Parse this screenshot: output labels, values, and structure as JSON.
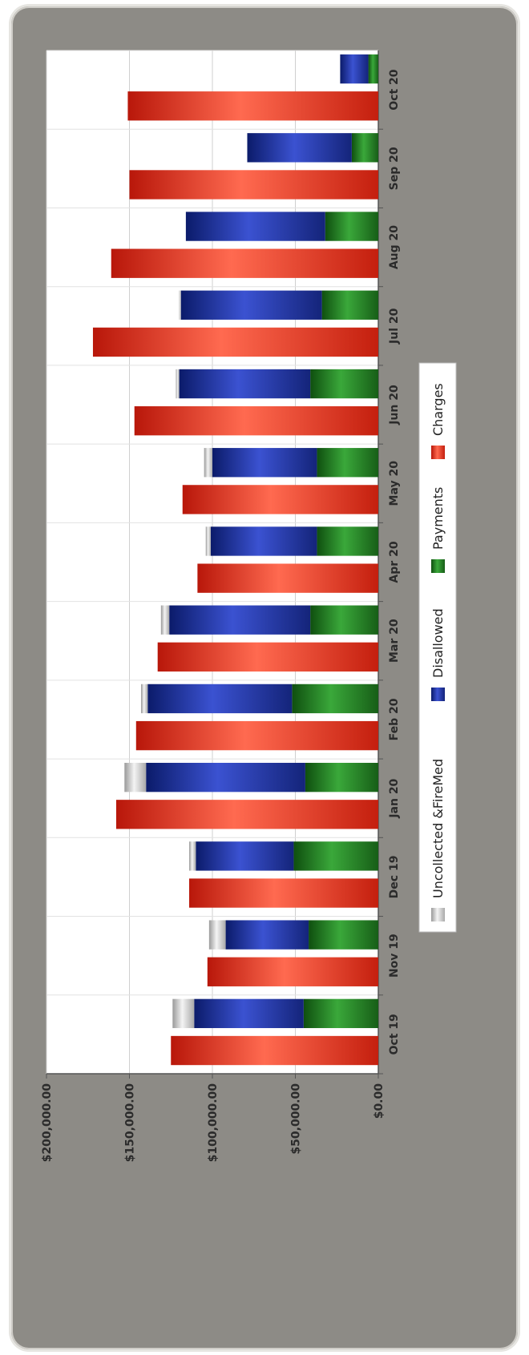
{
  "chart_data": {
    "type": "bar",
    "orientation": "rotated-90-clockwise",
    "categories": [
      "Oct 19",
      "Nov 19",
      "Dec 19",
      "Jan 20",
      "Feb 20",
      "Mar 20",
      "Apr 20",
      "May 20",
      "Jun 20",
      "Jul 20",
      "Aug 20",
      "Sep 20",
      "Oct 20"
    ],
    "ylim": [
      0,
      200000
    ],
    "yticks": [
      "$0.00",
      "$50,000.00",
      "$100,000.00",
      "$150,000.00",
      "$200,000.00"
    ],
    "ytick_values": [
      0,
      50000,
      100000,
      150000,
      200000
    ],
    "grid": true,
    "legend_position": "right",
    "stacked_group": [
      "Payments",
      "Disallowed",
      "Uncollected &FireMed"
    ],
    "series": [
      {
        "name": "Uncollected &FireMed",
        "color": "#cfcfcf",
        "values": [
          13000,
          10000,
          4000,
          13000,
          4000,
          5000,
          3000,
          5000,
          2000,
          1000,
          0,
          0,
          0
        ]
      },
      {
        "name": "Disallowed",
        "color": "#1a2f9a",
        "values": [
          66000,
          50000,
          59000,
          96000,
          87000,
          85000,
          64000,
          63000,
          79000,
          85000,
          84000,
          63000,
          17000
        ]
      },
      {
        "name": "Payments",
        "color": "#1f7a1f",
        "values": [
          45000,
          42000,
          51000,
          44000,
          52000,
          41000,
          37000,
          37000,
          41000,
          34000,
          32000,
          16000,
          6000
        ]
      },
      {
        "name": "Charges",
        "color": "#e8321e",
        "values": [
          125000,
          103000,
          114000,
          158000,
          146000,
          133000,
          109000,
          118000,
          147000,
          172000,
          161000,
          150000,
          151000
        ]
      }
    ]
  }
}
